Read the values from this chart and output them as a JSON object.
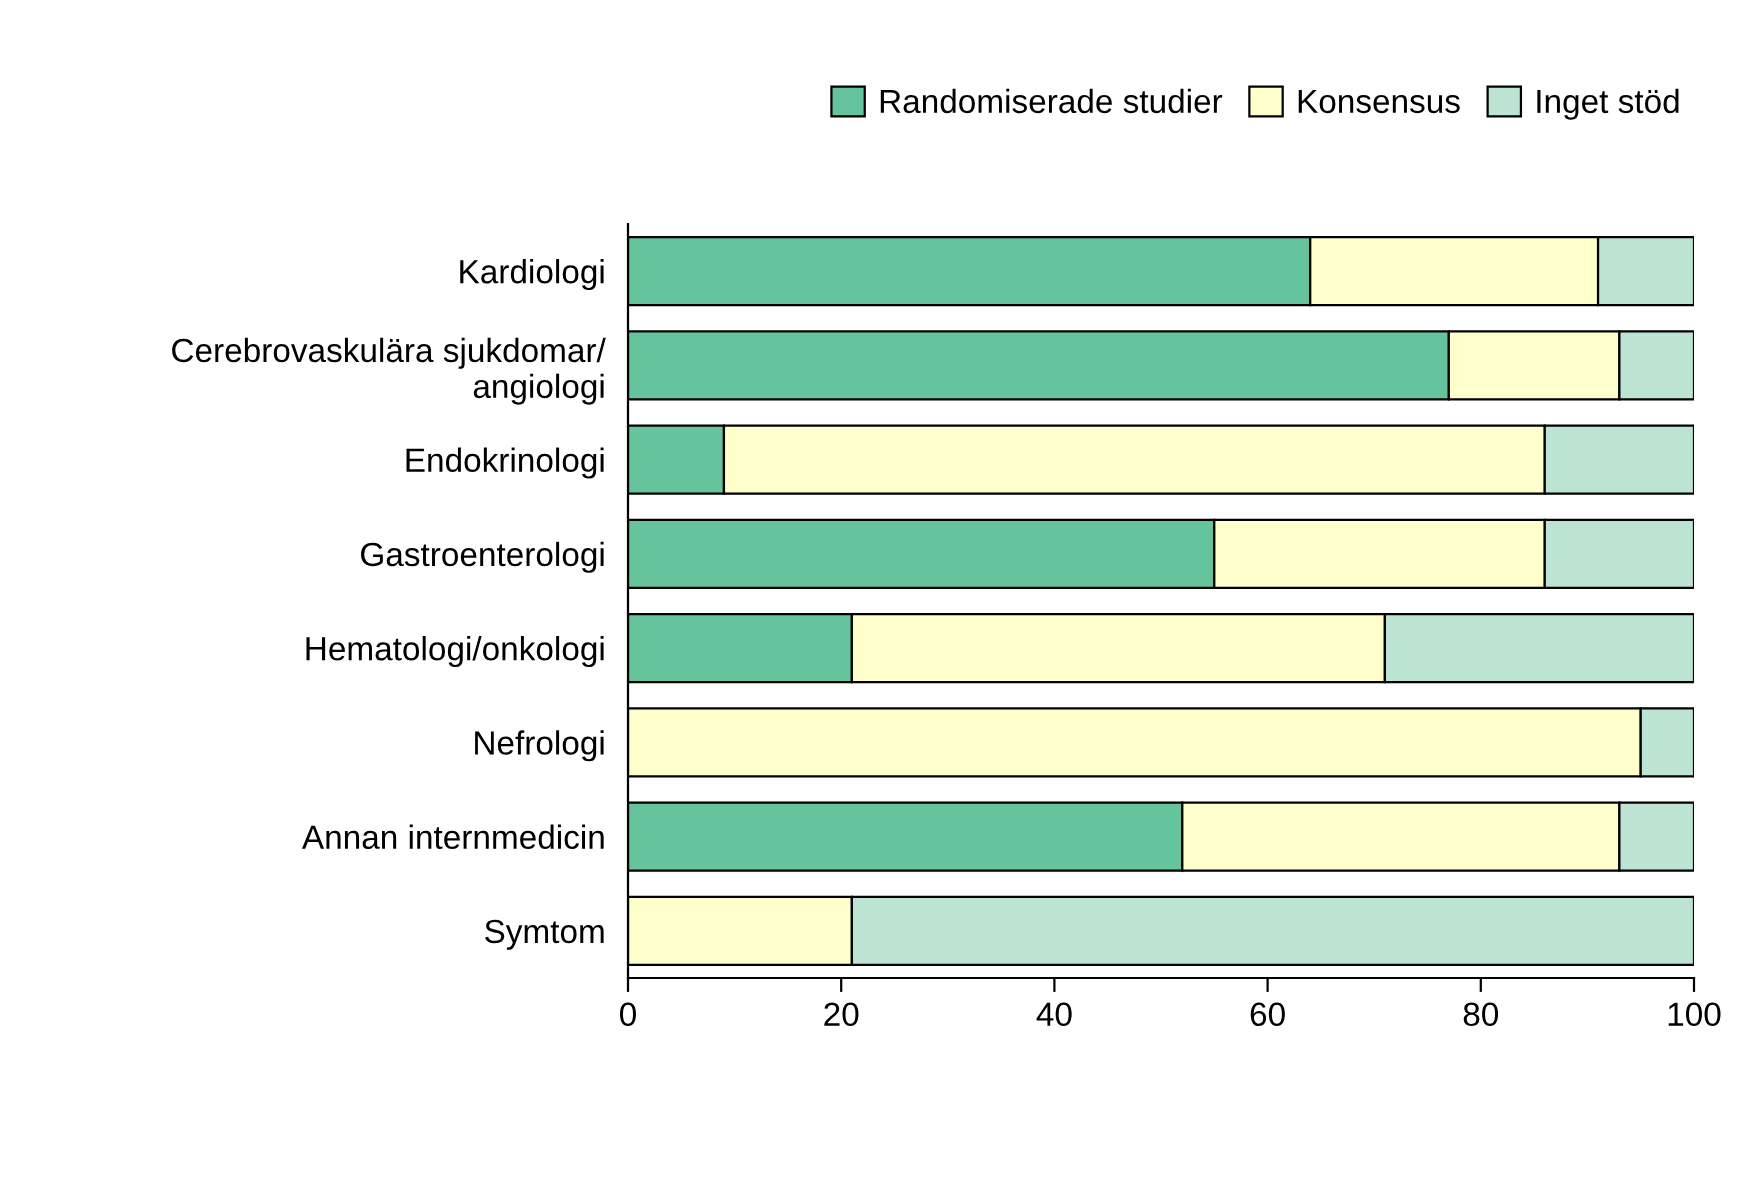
{
  "chart_data": {
    "type": "bar",
    "orientation": "horizontal",
    "stacked": true,
    "categories": [
      "Kardiologi",
      "Cerebrovaskulära sjukdomar/\nangiologi",
      "Endokrinologi",
      "Gastroenterologi",
      "Hematologi/onkologi",
      "Nefrologi",
      "Annan internmedicin",
      "Symtom"
    ],
    "series": [
      {
        "name": "Randomiserade studier",
        "color": "#66c49c",
        "values": [
          64,
          77,
          9,
          55,
          21,
          0,
          52,
          0
        ]
      },
      {
        "name": "Konsensus",
        "color": "#ffffcc",
        "values": [
          27,
          16,
          77,
          31,
          50,
          95,
          41,
          21
        ]
      },
      {
        "name": "Inget stöd",
        "color": "#bde3d3",
        "values": [
          9,
          7,
          14,
          14,
          29,
          5,
          7,
          79
        ]
      }
    ],
    "xlim": [
      0,
      100
    ],
    "xticks": [
      0,
      20,
      40,
      60,
      80,
      100
    ],
    "grid": false,
    "legend": "top right"
  }
}
